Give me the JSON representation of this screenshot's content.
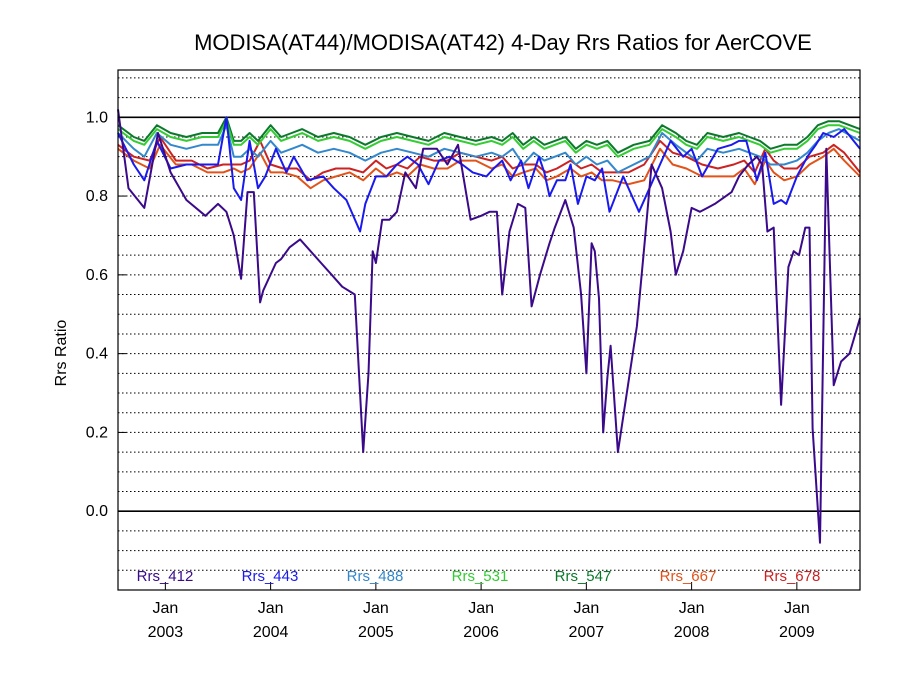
{
  "chart_data": {
    "type": "line",
    "title": "MODISA(AT44)/MODISA(AT42) 4-Day Rrs Ratios for AerCOVE",
    "xlabel": "",
    "ylabel": "Rrs Ratio",
    "xlim": [
      2002.55,
      2009.6
    ],
    "ylim": [
      -0.2,
      1.12
    ],
    "yticks": [
      0.0,
      0.2,
      0.4,
      0.6,
      0.8,
      1.0
    ],
    "ytick_labels": [
      "0.0",
      "0.2",
      "0.4",
      "0.6",
      "0.8",
      "1.0"
    ],
    "xticks": [
      {
        "x": 2003.0,
        "month": "Jan",
        "year": "2003"
      },
      {
        "x": 2004.0,
        "month": "Jan",
        "year": "2004"
      },
      {
        "x": 2005.0,
        "month": "Jan",
        "year": "2005"
      },
      {
        "x": 2006.0,
        "month": "Jan",
        "year": "2006"
      },
      {
        "x": 2007.0,
        "month": "Jan",
        "year": "2007"
      },
      {
        "x": 2008.0,
        "month": "Jan",
        "year": "2008"
      },
      {
        "x": 2009.0,
        "month": "Jan",
        "year": "2009"
      }
    ],
    "reference_lines": [
      0.0,
      1.0
    ],
    "grid": "dotted horizontal every 0.05",
    "legend_position": "bottom inside",
    "series": [
      {
        "name": "Rrs_412",
        "color": "#3a0a8a",
        "x": [
          2002.55,
          2002.65,
          2002.8,
          2002.93,
          2003.05,
          2003.2,
          2003.38,
          2003.5,
          2003.58,
          2003.65,
          2003.72,
          2003.78,
          2003.84,
          2003.9,
          2003.93,
          2004.05,
          2004.1,
          2004.18,
          2004.28,
          2004.48,
          2004.58,
          2004.68,
          2004.8,
          2004.88,
          2004.93,
          2004.97,
          2005.0,
          2005.06,
          2005.13,
          2005.2,
          2005.28,
          2005.38,
          2005.45,
          2005.58,
          2005.68,
          2005.78,
          2005.9,
          2006.0,
          2006.08,
          2006.15,
          2006.2,
          2006.27,
          2006.35,
          2006.42,
          2006.48,
          2006.56,
          2006.65,
          2006.7,
          2006.8,
          2006.88,
          2006.95,
          2007.0,
          2007.05,
          2007.08,
          2007.12,
          2007.16,
          2007.2,
          2007.23,
          2007.3,
          2007.48,
          2007.56,
          2007.62,
          2007.72,
          2007.8,
          2007.85,
          2007.92,
          2008.0,
          2008.08,
          2008.15,
          2008.22,
          2008.38,
          2008.45,
          2008.54,
          2008.62,
          2008.67,
          2008.72,
          2008.78,
          2008.85,
          2008.92,
          2008.97,
          2009.02,
          2009.08,
          2009.12,
          2009.15,
          2009.22,
          2009.28,
          2009.35,
          2009.42,
          2009.5,
          2009.6
        ],
        "y": [
          1.02,
          0.82,
          0.77,
          0.96,
          0.86,
          0.79,
          0.75,
          0.78,
          0.76,
          0.7,
          0.59,
          0.81,
          0.81,
          0.53,
          0.56,
          0.63,
          0.64,
          0.67,
          0.69,
          0.63,
          0.6,
          0.57,
          0.55,
          0.15,
          0.35,
          0.66,
          0.63,
          0.74,
          0.74,
          0.76,
          0.86,
          0.82,
          0.92,
          0.92,
          0.88,
          0.93,
          0.74,
          0.75,
          0.76,
          0.76,
          0.55,
          0.71,
          0.78,
          0.77,
          0.52,
          0.6,
          0.68,
          0.72,
          0.79,
          0.72,
          0.55,
          0.35,
          0.68,
          0.66,
          0.54,
          0.2,
          0.34,
          0.42,
          0.15,
          0.47,
          0.7,
          0.88,
          0.82,
          0.71,
          0.6,
          0.66,
          0.77,
          0.76,
          0.77,
          0.78,
          0.81,
          0.85,
          0.88,
          0.9,
          0.88,
          0.71,
          0.72,
          0.27,
          0.62,
          0.66,
          0.65,
          0.72,
          0.72,
          0.21,
          -0.08,
          0.92,
          0.32,
          0.38,
          0.4,
          0.49
        ]
      },
      {
        "name": "Rrs_443",
        "color": "#1a1aee",
        "x": [
          2002.55,
          2002.7,
          2002.8,
          2002.92,
          2003.05,
          2003.2,
          2003.35,
          2003.5,
          2003.58,
          2003.65,
          2003.72,
          2003.8,
          2003.88,
          2003.95,
          2004.05,
          2004.15,
          2004.22,
          2004.35,
          2004.5,
          2004.6,
          2004.72,
          2004.85,
          2004.9,
          2005.0,
          2005.1,
          2005.2,
          2005.3,
          2005.4,
          2005.5,
          2005.6,
          2005.7,
          2005.82,
          2005.92,
          2006.05,
          2006.12,
          2006.2,
          2006.28,
          2006.38,
          2006.45,
          2006.55,
          2006.6,
          2006.65,
          2006.72,
          2006.8,
          2006.85,
          2006.92,
          2007.0,
          2007.08,
          2007.15,
          2007.22,
          2007.35,
          2007.5,
          2007.6,
          2007.7,
          2007.8,
          2007.92,
          2008.0,
          2008.1,
          2008.25,
          2008.38,
          2008.45,
          2008.52,
          2008.62,
          2008.7,
          2008.78,
          2008.85,
          2008.9,
          2009.0,
          2009.1,
          2009.18,
          2009.25,
          2009.35,
          2009.45,
          2009.6
        ],
        "y": [
          0.96,
          0.88,
          0.84,
          0.94,
          0.87,
          0.88,
          0.88,
          0.88,
          1.0,
          0.82,
          0.79,
          0.94,
          0.82,
          0.85,
          0.92,
          0.86,
          0.9,
          0.84,
          0.85,
          0.82,
          0.79,
          0.71,
          0.78,
          0.85,
          0.85,
          0.88,
          0.9,
          0.88,
          0.83,
          0.89,
          0.9,
          0.88,
          0.86,
          0.85,
          0.87,
          0.89,
          0.84,
          0.89,
          0.82,
          0.9,
          0.86,
          0.8,
          0.84,
          0.84,
          0.88,
          0.78,
          0.85,
          0.84,
          0.87,
          0.76,
          0.85,
          0.76,
          0.82,
          0.88,
          0.94,
          0.9,
          0.92,
          0.85,
          0.92,
          0.93,
          0.94,
          0.94,
          0.84,
          0.91,
          0.78,
          0.79,
          0.78,
          0.85,
          0.9,
          0.93,
          0.96,
          0.95,
          0.97,
          0.92
        ]
      },
      {
        "name": "Rrs_488",
        "color": "#3388cc",
        "x": [
          2002.55,
          2002.7,
          2002.8,
          2002.92,
          2003.05,
          2003.2,
          2003.35,
          2003.5,
          2003.58,
          2003.65,
          2003.72,
          2003.8,
          2003.88,
          2004.0,
          2004.1,
          2004.2,
          2004.3,
          2004.45,
          2004.6,
          2004.75,
          2004.9,
          2005.05,
          2005.2,
          2005.35,
          2005.5,
          2005.65,
          2005.8,
          2005.95,
          2006.1,
          2006.2,
          2006.3,
          2006.4,
          2006.5,
          2006.6,
          2006.7,
          2006.8,
          2006.9,
          2007.0,
          2007.1,
          2007.2,
          2007.3,
          2007.45,
          2007.6,
          2007.72,
          2007.85,
          2007.95,
          2008.05,
          2008.15,
          2008.3,
          2008.45,
          2008.55,
          2008.65,
          2008.75,
          2008.88,
          2009.0,
          2009.1,
          2009.2,
          2009.3,
          2009.4,
          2009.6
        ],
        "y": [
          0.96,
          0.92,
          0.9,
          0.96,
          0.93,
          0.92,
          0.93,
          0.93,
          0.98,
          0.9,
          0.9,
          0.92,
          0.9,
          0.94,
          0.91,
          0.92,
          0.93,
          0.91,
          0.92,
          0.91,
          0.89,
          0.91,
          0.92,
          0.91,
          0.9,
          0.92,
          0.91,
          0.9,
          0.91,
          0.9,
          0.92,
          0.88,
          0.91,
          0.89,
          0.9,
          0.91,
          0.88,
          0.9,
          0.88,
          0.89,
          0.86,
          0.88,
          0.9,
          0.96,
          0.93,
          0.91,
          0.89,
          0.92,
          0.91,
          0.92,
          0.91,
          0.9,
          0.88,
          0.88,
          0.89,
          0.91,
          0.94,
          0.96,
          0.97,
          0.94
        ]
      },
      {
        "name": "Rrs_531",
        "color": "#33cc33",
        "x": [
          2002.55,
          2002.7,
          2002.8,
          2002.92,
          2003.05,
          2003.2,
          2003.35,
          2003.5,
          2003.58,
          2003.65,
          2003.72,
          2003.8,
          2003.88,
          2004.0,
          2004.1,
          2004.2,
          2004.3,
          2004.45,
          2004.6,
          2004.75,
          2004.9,
          2005.05,
          2005.2,
          2005.35,
          2005.5,
          2005.65,
          2005.8,
          2005.95,
          2006.1,
          2006.2,
          2006.3,
          2006.4,
          2006.5,
          2006.6,
          2006.7,
          2006.8,
          2006.9,
          2007.0,
          2007.1,
          2007.2,
          2007.3,
          2007.45,
          2007.6,
          2007.72,
          2007.85,
          2007.95,
          2008.05,
          2008.15,
          2008.3,
          2008.45,
          2008.55,
          2008.65,
          2008.75,
          2008.88,
          2009.0,
          2009.1,
          2009.2,
          2009.3,
          2009.4,
          2009.6
        ],
        "y": [
          0.97,
          0.94,
          0.93,
          0.97,
          0.95,
          0.94,
          0.95,
          0.95,
          0.99,
          0.93,
          0.93,
          0.95,
          0.93,
          0.97,
          0.94,
          0.95,
          0.96,
          0.94,
          0.95,
          0.94,
          0.92,
          0.94,
          0.95,
          0.94,
          0.93,
          0.95,
          0.94,
          0.93,
          0.94,
          0.93,
          0.95,
          0.92,
          0.94,
          0.92,
          0.93,
          0.94,
          0.91,
          0.93,
          0.92,
          0.93,
          0.9,
          0.92,
          0.93,
          0.97,
          0.95,
          0.93,
          0.92,
          0.95,
          0.94,
          0.95,
          0.94,
          0.93,
          0.91,
          0.92,
          0.92,
          0.94,
          0.97,
          0.98,
          0.98,
          0.96
        ]
      },
      {
        "name": "Rrs_547",
        "color": "#0a7a2a",
        "x": [
          2002.55,
          2002.7,
          2002.8,
          2002.92,
          2003.05,
          2003.2,
          2003.35,
          2003.5,
          2003.58,
          2003.65,
          2003.72,
          2003.8,
          2003.88,
          2004.0,
          2004.1,
          2004.2,
          2004.3,
          2004.45,
          2004.6,
          2004.75,
          2004.9,
          2005.05,
          2005.2,
          2005.35,
          2005.5,
          2005.65,
          2005.8,
          2005.95,
          2006.1,
          2006.2,
          2006.3,
          2006.4,
          2006.5,
          2006.6,
          2006.7,
          2006.8,
          2006.9,
          2007.0,
          2007.1,
          2007.2,
          2007.3,
          2007.45,
          2007.6,
          2007.72,
          2007.85,
          2007.95,
          2008.05,
          2008.15,
          2008.3,
          2008.45,
          2008.55,
          2008.65,
          2008.75,
          2008.88,
          2009.0,
          2009.1,
          2009.2,
          2009.3,
          2009.4,
          2009.6
        ],
        "y": [
          0.98,
          0.95,
          0.94,
          0.98,
          0.96,
          0.95,
          0.96,
          0.96,
          1.0,
          0.94,
          0.94,
          0.96,
          0.94,
          0.98,
          0.95,
          0.96,
          0.97,
          0.95,
          0.96,
          0.95,
          0.93,
          0.95,
          0.96,
          0.95,
          0.94,
          0.96,
          0.95,
          0.94,
          0.95,
          0.94,
          0.96,
          0.93,
          0.95,
          0.93,
          0.94,
          0.95,
          0.92,
          0.94,
          0.93,
          0.94,
          0.91,
          0.93,
          0.94,
          0.98,
          0.96,
          0.94,
          0.93,
          0.96,
          0.95,
          0.96,
          0.95,
          0.94,
          0.92,
          0.93,
          0.93,
          0.95,
          0.98,
          0.99,
          0.99,
          0.97
        ]
      },
      {
        "name": "Rrs_667",
        "color": "#e2531a",
        "x": [
          2002.55,
          2002.7,
          2002.85,
          2002.95,
          2003.1,
          2003.25,
          2003.4,
          2003.55,
          2003.65,
          2003.72,
          2003.8,
          2003.9,
          2004.0,
          2004.12,
          2004.25,
          2004.38,
          2004.5,
          2004.62,
          2004.75,
          2004.88,
          2005.0,
          2005.1,
          2005.2,
          2005.3,
          2005.42,
          2005.55,
          2005.68,
          2005.8,
          2005.95,
          2006.1,
          2006.2,
          2006.3,
          2006.4,
          2006.52,
          2006.62,
          2006.72,
          2006.85,
          2006.95,
          2007.05,
          2007.15,
          2007.25,
          2007.4,
          2007.55,
          2007.7,
          2007.82,
          2007.95,
          2008.1,
          2008.25,
          2008.4,
          2008.5,
          2008.6,
          2008.7,
          2008.78,
          2008.88,
          2009.0,
          2009.12,
          2009.25,
          2009.35,
          2009.45,
          2009.6
        ],
        "y": [
          0.92,
          0.89,
          0.87,
          0.93,
          0.88,
          0.88,
          0.86,
          0.86,
          0.87,
          0.86,
          0.87,
          0.91,
          0.86,
          0.86,
          0.85,
          0.82,
          0.84,
          0.85,
          0.86,
          0.84,
          0.87,
          0.85,
          0.86,
          0.85,
          0.88,
          0.87,
          0.87,
          0.89,
          0.89,
          0.87,
          0.88,
          0.85,
          0.86,
          0.87,
          0.84,
          0.85,
          0.87,
          0.85,
          0.86,
          0.84,
          0.84,
          0.83,
          0.84,
          0.92,
          0.88,
          0.87,
          0.85,
          0.85,
          0.85,
          0.87,
          0.83,
          0.89,
          0.86,
          0.84,
          0.85,
          0.88,
          0.9,
          0.92,
          0.89,
          0.85
        ]
      },
      {
        "name": "Rrs_678",
        "color": "#cc2222",
        "x": [
          2002.55,
          2002.7,
          2002.85,
          2002.95,
          2003.1,
          2003.25,
          2003.4,
          2003.55,
          2003.65,
          2003.72,
          2003.8,
          2003.9,
          2004.0,
          2004.12,
          2004.25,
          2004.38,
          2004.5,
          2004.62,
          2004.75,
          2004.88,
          2005.0,
          2005.1,
          2005.2,
          2005.3,
          2005.42,
          2005.55,
          2005.68,
          2005.8,
          2005.95,
          2006.1,
          2006.2,
          2006.3,
          2006.4,
          2006.52,
          2006.62,
          2006.72,
          2006.85,
          2006.95,
          2007.05,
          2007.15,
          2007.25,
          2007.4,
          2007.55,
          2007.7,
          2007.82,
          2007.95,
          2008.1,
          2008.25,
          2008.4,
          2008.5,
          2008.6,
          2008.7,
          2008.78,
          2008.88,
          2009.0,
          2009.12,
          2009.25,
          2009.35,
          2009.45,
          2009.6
        ],
        "y": [
          0.93,
          0.9,
          0.89,
          0.95,
          0.89,
          0.89,
          0.87,
          0.88,
          0.88,
          0.88,
          0.89,
          0.94,
          0.88,
          0.87,
          0.87,
          0.84,
          0.86,
          0.87,
          0.87,
          0.86,
          0.89,
          0.87,
          0.88,
          0.87,
          0.9,
          0.89,
          0.89,
          0.91,
          0.9,
          0.89,
          0.9,
          0.87,
          0.88,
          0.88,
          0.86,
          0.87,
          0.89,
          0.87,
          0.88,
          0.86,
          0.86,
          0.86,
          0.88,
          0.94,
          0.91,
          0.9,
          0.88,
          0.87,
          0.88,
          0.89,
          0.86,
          0.92,
          0.89,
          0.87,
          0.87,
          0.9,
          0.91,
          0.93,
          0.91,
          0.86
        ]
      }
    ]
  }
}
